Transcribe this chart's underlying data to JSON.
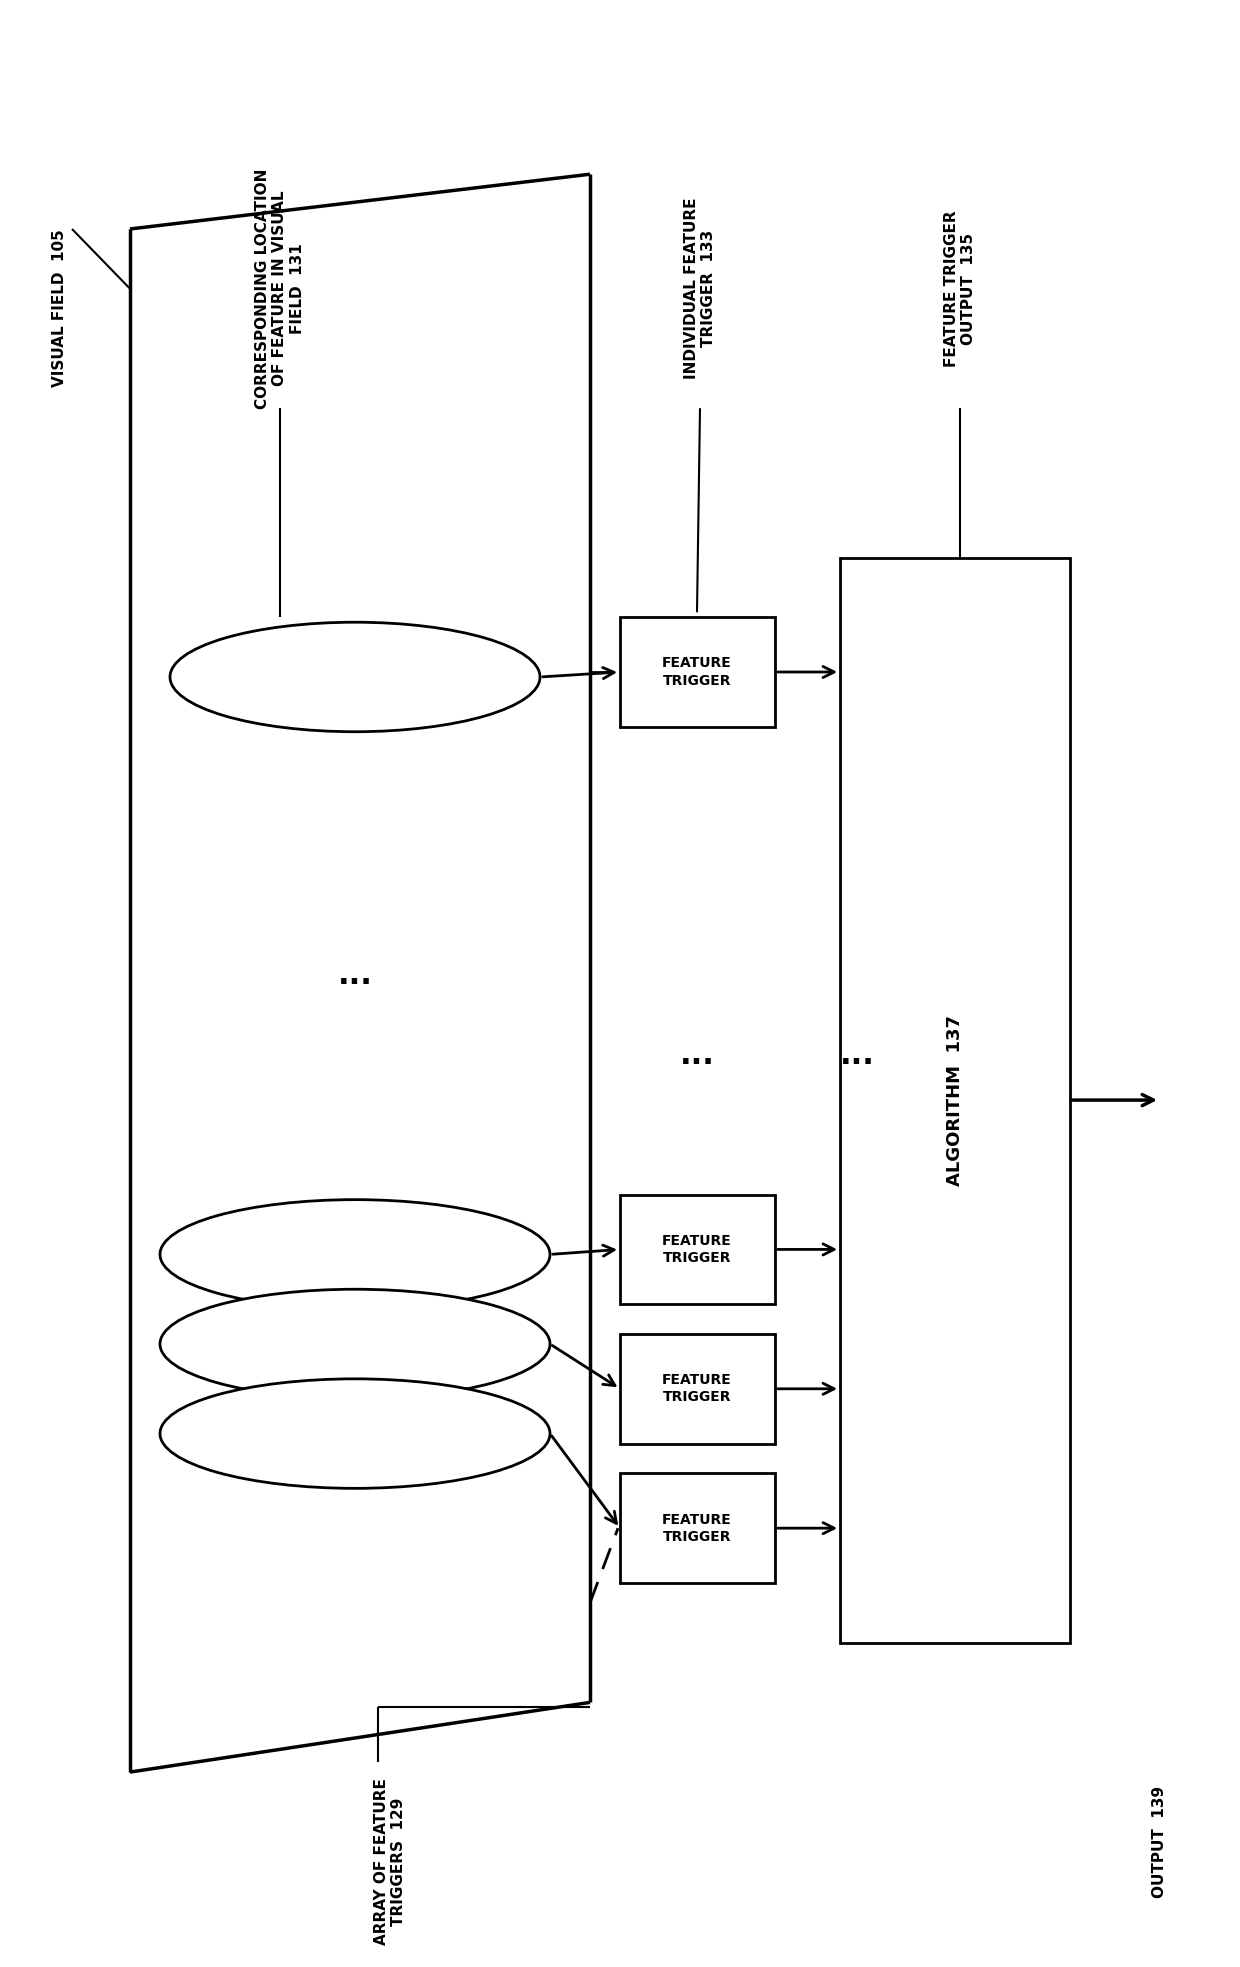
{
  "bg_color": "#ffffff",
  "line_color": "#000000",
  "lw": 2.0,
  "fig_width": 12.4,
  "fig_height": 19.67,
  "labels": {
    "visual_field": "VISUAL FIELD  105",
    "corr_location": "CORRESPONDING LOCATION\nOF FEATURE IN VISUAL\nFIELD  131",
    "individual_feature": "INDIVIDUAL FEATURE\nTRIGGER  133",
    "feature_trigger_output": "FEATURE TRIGGER\nOUTPUT  135",
    "algorithm": "ALGORITHM  137",
    "output": "OUTPUT  139",
    "array_of_triggers": "ARRAY OF FEATURE\nTRIGGERS  129"
  },
  "box_label": "FEATURE\nTRIGGER",
  "dots": "⋯",
  "dots3": "..."
}
